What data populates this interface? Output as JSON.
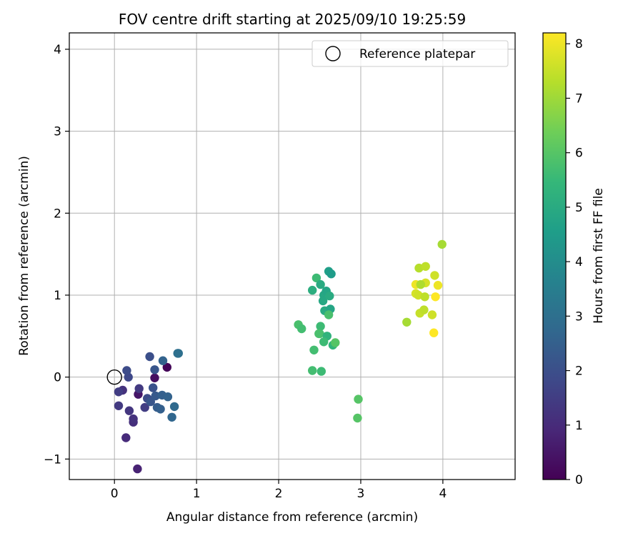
{
  "chart_data": {
    "type": "scatter",
    "title": "FOV centre drift starting at 2025/09/10 19:25:59",
    "xlabel": "Angular distance from reference (arcmin)",
    "ylabel": "Rotation from reference (arcmin)",
    "xlim": [
      -0.55,
      4.88
    ],
    "ylim": [
      -1.25,
      4.2
    ],
    "xticks": [
      0,
      1,
      2,
      3,
      4
    ],
    "xtick_labels": [
      "0",
      "1",
      "2",
      "3",
      "4"
    ],
    "yticks": [
      -1,
      0,
      1,
      2,
      3,
      4
    ],
    "ytick_labels": [
      "−1",
      "0",
      "1",
      "2",
      "3",
      "4"
    ],
    "grid": true,
    "legend": {
      "position": "top-right",
      "label": "Reference platepar"
    },
    "colorbar": {
      "label": "Hours from first FF file",
      "min": 0,
      "max": 8.2,
      "ticks": [
        0,
        1,
        2,
        3,
        4,
        5,
        6,
        7,
        8
      ],
      "tick_labels": [
        "0",
        "1",
        "2",
        "3",
        "4",
        "5",
        "6",
        "7",
        "8"
      ],
      "colormap": [
        "#440154",
        "#482878",
        "#3e4989",
        "#31688e",
        "#26828e",
        "#1f9e89",
        "#35b779",
        "#6ece58",
        "#b5de2b",
        "#fde725"
      ]
    },
    "reference_point": {
      "x": 0,
      "y": 0
    },
    "points": [
      {
        "x": 0.64,
        "y": 0.12,
        "t": 0.1
      },
      {
        "x": 0.49,
        "y": -0.01,
        "t": 0.3
      },
      {
        "x": 0.29,
        "y": -0.21,
        "t": 0.5
      },
      {
        "x": 0.28,
        "y": -1.12,
        "t": 0.8
      },
      {
        "x": 0.14,
        "y": -0.74,
        "t": 1.0
      },
      {
        "x": 0.23,
        "y": -0.55,
        "t": 1.1
      },
      {
        "x": 0.23,
        "y": -0.51,
        "t": 1.2
      },
      {
        "x": 0.18,
        "y": -0.41,
        "t": 1.3
      },
      {
        "x": 0.1,
        "y": -0.16,
        "t": 1.2
      },
      {
        "x": 0.05,
        "y": -0.35,
        "t": 1.4
      },
      {
        "x": 0.05,
        "y": -0.18,
        "t": 1.5
      },
      {
        "x": 0.3,
        "y": -0.14,
        "t": 1.4
      },
      {
        "x": 0.37,
        "y": -0.37,
        "t": 1.5
      },
      {
        "x": 0.17,
        "y": 0.0,
        "t": 1.8
      },
      {
        "x": 0.15,
        "y": 0.08,
        "t": 1.9
      },
      {
        "x": 0.4,
        "y": -0.26,
        "t": 1.9
      },
      {
        "x": 0.43,
        "y": 0.25,
        "t": 2.0
      },
      {
        "x": 0.47,
        "y": -0.13,
        "t": 2.1
      },
      {
        "x": 0.49,
        "y": 0.09,
        "t": 2.2
      },
      {
        "x": 0.44,
        "y": -0.3,
        "t": 2.2
      },
      {
        "x": 0.5,
        "y": -0.23,
        "t": 2.3
      },
      {
        "x": 0.52,
        "y": -0.37,
        "t": 2.4
      },
      {
        "x": 0.56,
        "y": -0.39,
        "t": 2.5
      },
      {
        "x": 0.58,
        "y": -0.22,
        "t": 2.5
      },
      {
        "x": 0.59,
        "y": 0.2,
        "t": 2.6
      },
      {
        "x": 0.65,
        "y": -0.24,
        "t": 2.6
      },
      {
        "x": 0.7,
        "y": -0.49,
        "t": 2.7
      },
      {
        "x": 0.73,
        "y": -0.36,
        "t": 2.8
      },
      {
        "x": 0.78,
        "y": 0.29,
        "t": 3.0
      },
      {
        "x": 0.77,
        "y": 0.29,
        "t": 3.0
      },
      {
        "x": 2.41,
        "y": 1.06,
        "t": 5.1
      },
      {
        "x": 2.46,
        "y": 1.21,
        "t": 5.6
      },
      {
        "x": 2.51,
        "y": 1.13,
        "t": 5.0
      },
      {
        "x": 2.55,
        "y": 1.0,
        "t": 4.9
      },
      {
        "x": 2.54,
        "y": 0.93,
        "t": 4.9
      },
      {
        "x": 2.58,
        "y": 1.05,
        "t": 4.8
      },
      {
        "x": 2.61,
        "y": 1.29,
        "t": 4.6
      },
      {
        "x": 2.64,
        "y": 1.26,
        "t": 4.5
      },
      {
        "x": 2.62,
        "y": 0.99,
        "t": 5.0
      },
      {
        "x": 2.56,
        "y": 0.81,
        "t": 5.0
      },
      {
        "x": 2.63,
        "y": 0.83,
        "t": 4.8
      },
      {
        "x": 2.61,
        "y": 0.76,
        "t": 5.8
      },
      {
        "x": 2.24,
        "y": 0.64,
        "t": 5.8
      },
      {
        "x": 2.28,
        "y": 0.59,
        "t": 5.7
      },
      {
        "x": 2.51,
        "y": 0.62,
        "t": 5.6
      },
      {
        "x": 2.5,
        "y": 0.53,
        "t": 5.7
      },
      {
        "x": 2.49,
        "y": 0.53,
        "t": 5.8
      },
      {
        "x": 2.59,
        "y": 0.5,
        "t": 5.3
      },
      {
        "x": 2.55,
        "y": 0.43,
        "t": 5.6
      },
      {
        "x": 2.66,
        "y": 0.39,
        "t": 5.4
      },
      {
        "x": 2.69,
        "y": 0.42,
        "t": 6.0
      },
      {
        "x": 2.43,
        "y": 0.33,
        "t": 5.7
      },
      {
        "x": 2.41,
        "y": 0.08,
        "t": 5.7
      },
      {
        "x": 2.52,
        "y": 0.07,
        "t": 5.6
      },
      {
        "x": 2.97,
        "y": -0.27,
        "t": 6.0
      },
      {
        "x": 2.96,
        "y": -0.5,
        "t": 6.0
      },
      {
        "x": 3.99,
        "y": 1.62,
        "t": 7.1
      },
      {
        "x": 3.71,
        "y": 1.33,
        "t": 7.3
      },
      {
        "x": 3.79,
        "y": 1.35,
        "t": 7.4
      },
      {
        "x": 3.9,
        "y": 1.24,
        "t": 7.6
      },
      {
        "x": 3.67,
        "y": 1.13,
        "t": 8.0
      },
      {
        "x": 3.79,
        "y": 1.15,
        "t": 7.7
      },
      {
        "x": 3.73,
        "y": 1.13,
        "t": 7.2
      },
      {
        "x": 3.94,
        "y": 1.12,
        "t": 8.0
      },
      {
        "x": 3.67,
        "y": 1.02,
        "t": 7.7
      },
      {
        "x": 3.7,
        "y": 1.0,
        "t": 7.6
      },
      {
        "x": 3.78,
        "y": 0.98,
        "t": 7.4
      },
      {
        "x": 3.91,
        "y": 0.98,
        "t": 8.2
      },
      {
        "x": 3.72,
        "y": 0.78,
        "t": 7.5
      },
      {
        "x": 3.77,
        "y": 0.82,
        "t": 7.4
      },
      {
        "x": 3.87,
        "y": 0.76,
        "t": 7.6
      },
      {
        "x": 3.56,
        "y": 0.67,
        "t": 7.1
      },
      {
        "x": 3.89,
        "y": 0.54,
        "t": 8.2
      }
    ]
  }
}
